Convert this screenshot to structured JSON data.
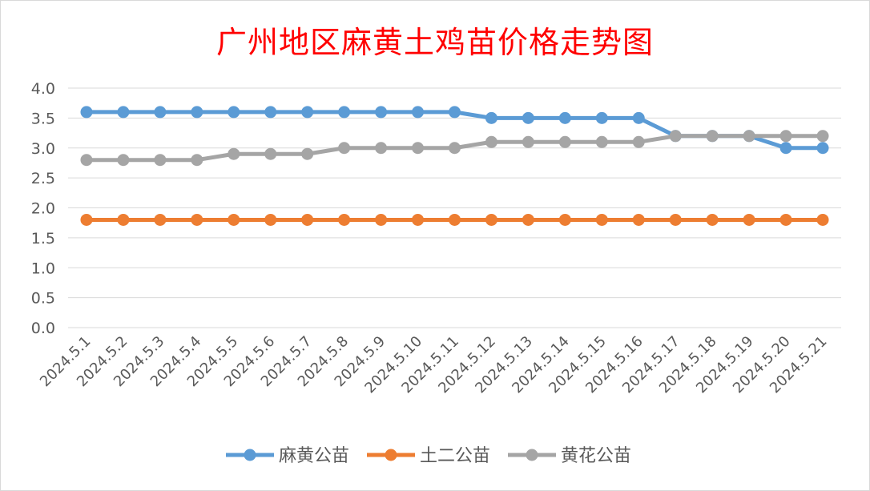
{
  "chart_data": {
    "type": "line",
    "title": "广州地区麻黄土鸡苗价格走势图",
    "xlabel": "",
    "ylabel": "",
    "ylim": [
      0,
      4
    ],
    "ytick_labels": [
      "0.0",
      "0.5",
      "1.0",
      "1.5",
      "2.0",
      "2.5",
      "3.0",
      "3.5",
      "4.0"
    ],
    "categories": [
      "2024.5.1",
      "2024.5.2",
      "2024.5.3",
      "2024.5.4",
      "2024.5.5",
      "2024.5.6",
      "2024.5.7",
      "2024.5.8",
      "2024.5.9",
      "2024.5.10",
      "2024.5.11",
      "2024.5.12",
      "2024.5.13",
      "2024.5.14",
      "2024.5.15",
      "2024.5.16",
      "2024.5.17",
      "2024.5.18",
      "2024.5.19",
      "2024.5.20",
      "2024.5.21"
    ],
    "grid": true,
    "legend_position": "bottom",
    "series": [
      {
        "name": "麻黄公苗",
        "color": "#5b9bd5",
        "values": [
          3.6,
          3.6,
          3.6,
          3.6,
          3.6,
          3.6,
          3.6,
          3.6,
          3.6,
          3.6,
          3.6,
          3.5,
          3.5,
          3.5,
          3.5,
          3.5,
          3.2,
          3.2,
          3.2,
          3.0,
          3.0
        ]
      },
      {
        "name": "土二公苗",
        "color": "#ed7d31",
        "values": [
          1.8,
          1.8,
          1.8,
          1.8,
          1.8,
          1.8,
          1.8,
          1.8,
          1.8,
          1.8,
          1.8,
          1.8,
          1.8,
          1.8,
          1.8,
          1.8,
          1.8,
          1.8,
          1.8,
          1.8,
          1.8
        ]
      },
      {
        "name": "黄花公苗",
        "color": "#a5a5a5",
        "values": [
          2.8,
          2.8,
          2.8,
          2.8,
          2.9,
          2.9,
          2.9,
          3.0,
          3.0,
          3.0,
          3.0,
          3.1,
          3.1,
          3.1,
          3.1,
          3.1,
          3.2,
          3.2,
          3.2,
          3.2,
          3.2
        ]
      }
    ]
  }
}
